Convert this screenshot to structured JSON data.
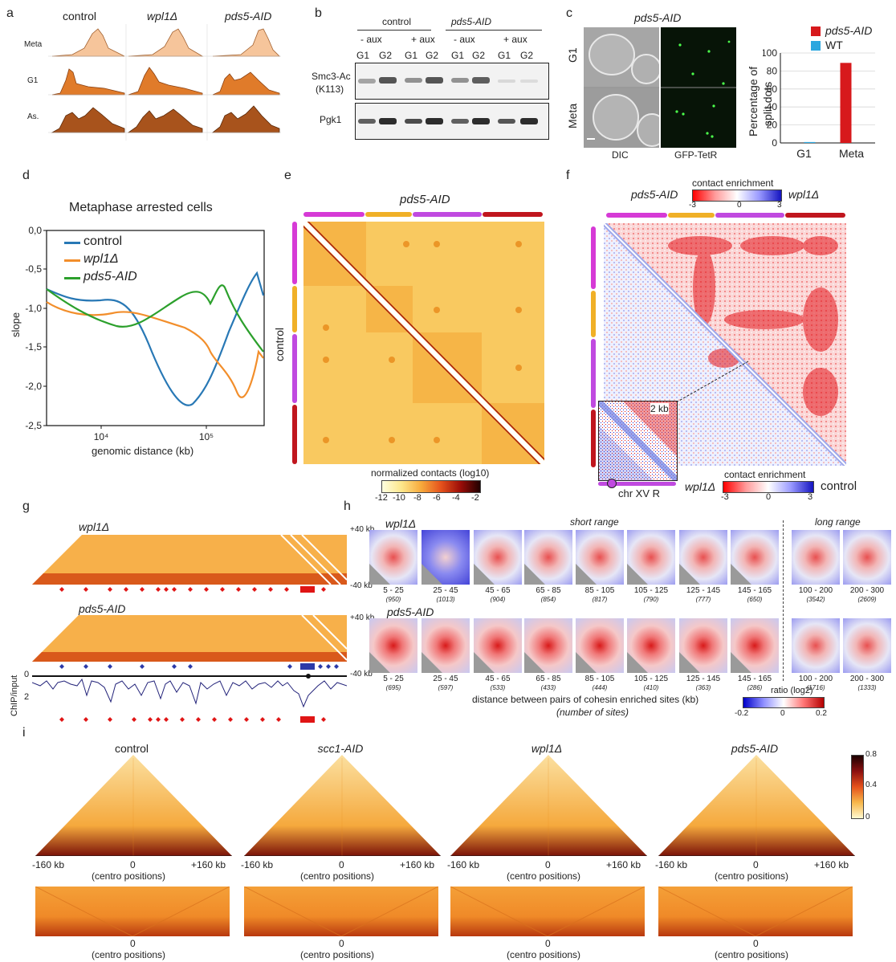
{
  "panels": {
    "a": "a",
    "b": "b",
    "c": "c",
    "d": "d",
    "e": "e",
    "f": "f",
    "g": "g",
    "h": "h",
    "i": "i"
  },
  "a": {
    "strains": [
      "control",
      "wpl1Δ",
      "pds5-AID"
    ],
    "rows": [
      "Meta",
      "G1",
      "As."
    ]
  },
  "b": {
    "group_control": "control",
    "group_pds5": "pds5-AID",
    "treatments": [
      "- aux",
      "+ aux",
      "- aux",
      "+ aux"
    ],
    "phases": [
      "G1",
      "G2",
      "G1",
      "G2",
      "G1",
      "G2",
      "G1",
      "G2"
    ],
    "row1_label_l1": "Smc3-Ac",
    "row1_label_l2": "(K113)",
    "row2_label": "Pgk1"
  },
  "c": {
    "strain": "pds5-AID",
    "row_labels": [
      "G1",
      "Meta"
    ],
    "col_labels": [
      "DIC",
      "GFP-TetR"
    ],
    "ylabel_l1": "Percentage of",
    "ylabel_l2": "split dots",
    "legend": [
      "pds5-AID",
      "WT"
    ]
  },
  "chart_data": {
    "type": "bar",
    "categories": [
      "G1",
      "Meta"
    ],
    "series": [
      {
        "name": "pds5-AID",
        "values": [
          0,
          89
        ],
        "color": "#d7191c"
      },
      {
        "name": "WT",
        "values": [
          1,
          0
        ],
        "color": "#2ca7df"
      }
    ],
    "ylabel": "Percentage of split dots",
    "ylim": [
      0,
      100
    ],
    "yticks": [
      "0",
      "20",
      "40",
      "60",
      "80",
      "100"
    ]
  },
  "d": {
    "title": "Metaphase arrested cells",
    "ylabel": "slope",
    "xlabel": "genomic distance (kb)",
    "yticks": [
      "0,0",
      "-0,5",
      "-1,0",
      "-1,5",
      "-2,0",
      "-2,5"
    ],
    "xticks": [
      "10⁴",
      "10⁵"
    ],
    "legend": [
      {
        "name": "control",
        "color": "#2878b5"
      },
      {
        "name": "wpl1Δ",
        "color": "#f28e2b"
      },
      {
        "name": "pds5-AID",
        "color": "#2ca02c"
      }
    ]
  },
  "e": {
    "top_label": "pds5-AID",
    "side_label": "control",
    "cbar_title": "normalized contacts (log10)",
    "cbar_ticks": [
      "-12",
      "-10",
      "-8",
      "-6",
      "-4",
      "-2"
    ]
  },
  "f": {
    "left_label": "pds5-AID",
    "right_label": "wpl1Δ",
    "cbar_title": "contact enrichment",
    "cbar_ticks": [
      "-3",
      "0",
      "3"
    ],
    "inset_label": "2 kb",
    "chr_label": "chr XV R",
    "bottom_left": "wpl1Δ",
    "bottom_right": "control"
  },
  "g": {
    "top_label": "wpl1Δ",
    "bottom_label": "pds5-AID",
    "ylabel": "ChIP/input",
    "yticks": [
      "0",
      "2"
    ]
  },
  "h": {
    "short_range": "short range",
    "long_range": "long range",
    "row_labels": [
      "wpl1Δ",
      "pds5-AID"
    ],
    "y_top": "+40 kb",
    "y_bottom": "-40 kb",
    "ranges": [
      "5 - 25",
      "25 - 45",
      "45 - 65",
      "65 - 85",
      "85 - 105",
      "105 - 125",
      "125 - 145",
      "145 - 165",
      "100 - 200",
      "200 - 300"
    ],
    "counts_row1": [
      "(950)",
      "(1013)",
      "(904)",
      "(854)",
      "(817)",
      "(790)",
      "(777)",
      "(650)",
      "(3542)",
      "(2609)"
    ],
    "counts_row2": [
      "(695)",
      "(597)",
      "(533)",
      "(433)",
      "(444)",
      "(410)",
      "(363)",
      "(286)",
      "(1716)",
      "(1333)"
    ],
    "xlabel": "distance between pairs of cohesin enriched sites (kb)",
    "xsublabel": "(number of sites)",
    "cbar_title": "ratio (log2)",
    "cbar_ticks": [
      "-0.2",
      "0",
      "0.2"
    ]
  },
  "i": {
    "strains": [
      "control",
      "scc1-AID",
      "wpl1Δ",
      "pds5-AID"
    ],
    "left_tick": "-160 kb",
    "center_tick": "0",
    "right_tick": "+160 kb",
    "center_label": "(centro positions)",
    "cbar_ticks": [
      "0.8",
      "0.4",
      "0"
    ]
  }
}
